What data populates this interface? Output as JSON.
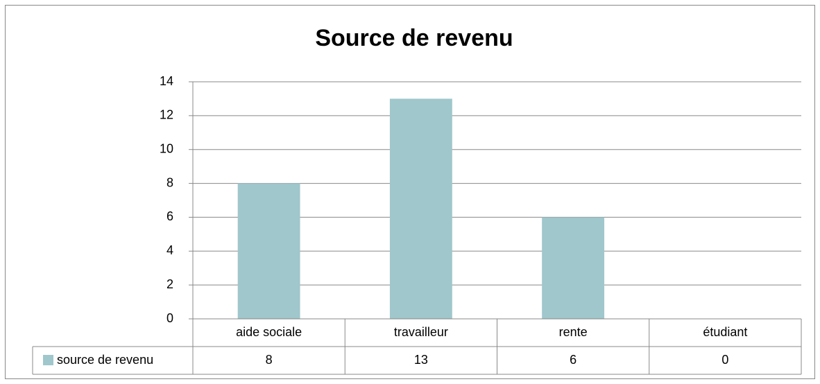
{
  "chart_data": {
    "type": "bar",
    "title": "Source de revenu",
    "categories": [
      "aide sociale",
      "travailleur",
      "rente",
      "étudiant"
    ],
    "series": [
      {
        "name": "source de revenu",
        "color": "#9fc7cc",
        "values": [
          8,
          13,
          6,
          0
        ]
      }
    ],
    "ylim": [
      0,
      14
    ],
    "yticks": [
      0,
      2,
      4,
      6,
      8,
      10,
      12,
      14
    ],
    "grid": true
  }
}
